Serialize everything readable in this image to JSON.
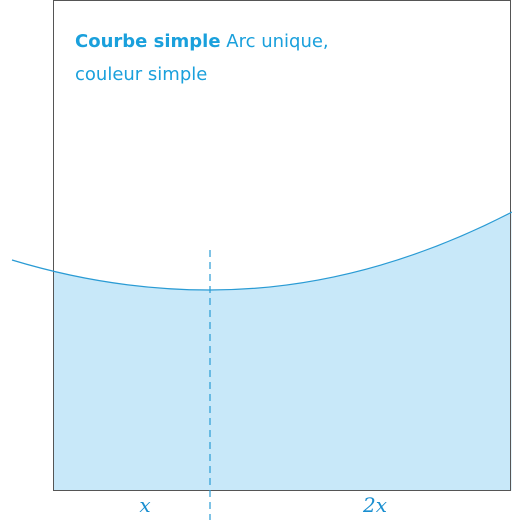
{
  "title": {
    "bold": "Courbe simple",
    "rest": "Arc unique,",
    "line2": "couleur simple"
  },
  "labels": [
    "x",
    "2x"
  ]
}
